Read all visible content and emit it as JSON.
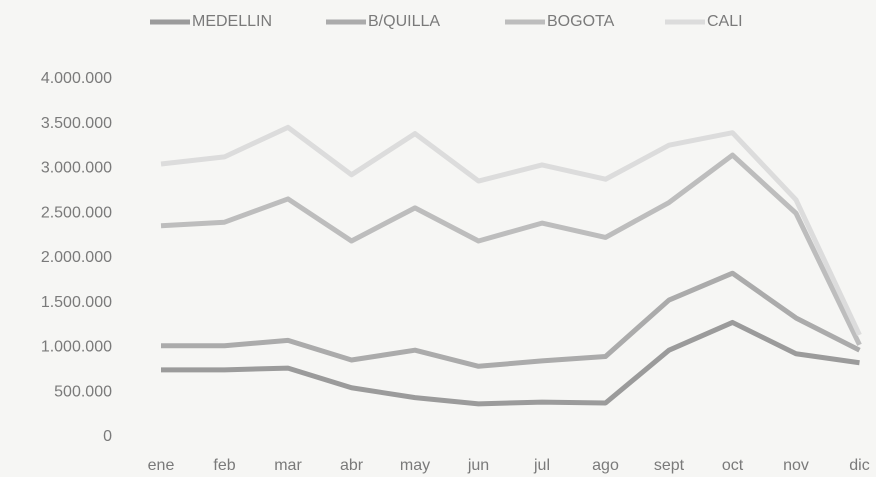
{
  "chart_data": {
    "type": "line",
    "categories": [
      "ene",
      "feb",
      "mar",
      "abr",
      "may",
      "jun",
      "jul",
      "ago",
      "sept",
      "oct",
      "nov",
      "dic"
    ],
    "series": [
      {
        "name": "MEDELLIN",
        "color": "#9b9b9b",
        "values": [
          750000,
          750000,
          770000,
          550000,
          440000,
          370000,
          390000,
          380000,
          970000,
          1280000,
          930000,
          830000
        ]
      },
      {
        "name": "B/QUILLA",
        "color": "#ababab",
        "values": [
          1020000,
          1020000,
          1080000,
          860000,
          970000,
          790000,
          850000,
          900000,
          1530000,
          1830000,
          1330000,
          970000
        ]
      },
      {
        "name": "BOGOTA",
        "color": "#bdbdbd",
        "values": [
          2360000,
          2400000,
          2660000,
          2190000,
          2560000,
          2190000,
          2390000,
          2230000,
          2620000,
          3150000,
          2500000,
          1030000
        ]
      },
      {
        "name": "CALI",
        "color": "#dcdcdc",
        "values": [
          3050000,
          3130000,
          3460000,
          2930000,
          3390000,
          2860000,
          3040000,
          2880000,
          3260000,
          3400000,
          2650000,
          1140000
        ]
      }
    ],
    "ylim": [
      0,
      4000000
    ],
    "yticks": [
      0,
      {
        "value": 500000,
        "label": "500.000"
      },
      {
        "value": 1000000,
        "label": "1.000.000"
      },
      {
        "value": 1500000,
        "label": "1.500.000"
      },
      {
        "value": 2000000,
        "label": "2.000.000"
      },
      {
        "value": 2500000,
        "label": "2.500.000"
      },
      {
        "value": 3000000,
        "label": "3.000.000"
      },
      {
        "value": 3500000,
        "label": "3.500.000"
      },
      {
        "value": 4000000,
        "label": "4.000.000"
      }
    ],
    "grid": false,
    "legend": "top"
  }
}
